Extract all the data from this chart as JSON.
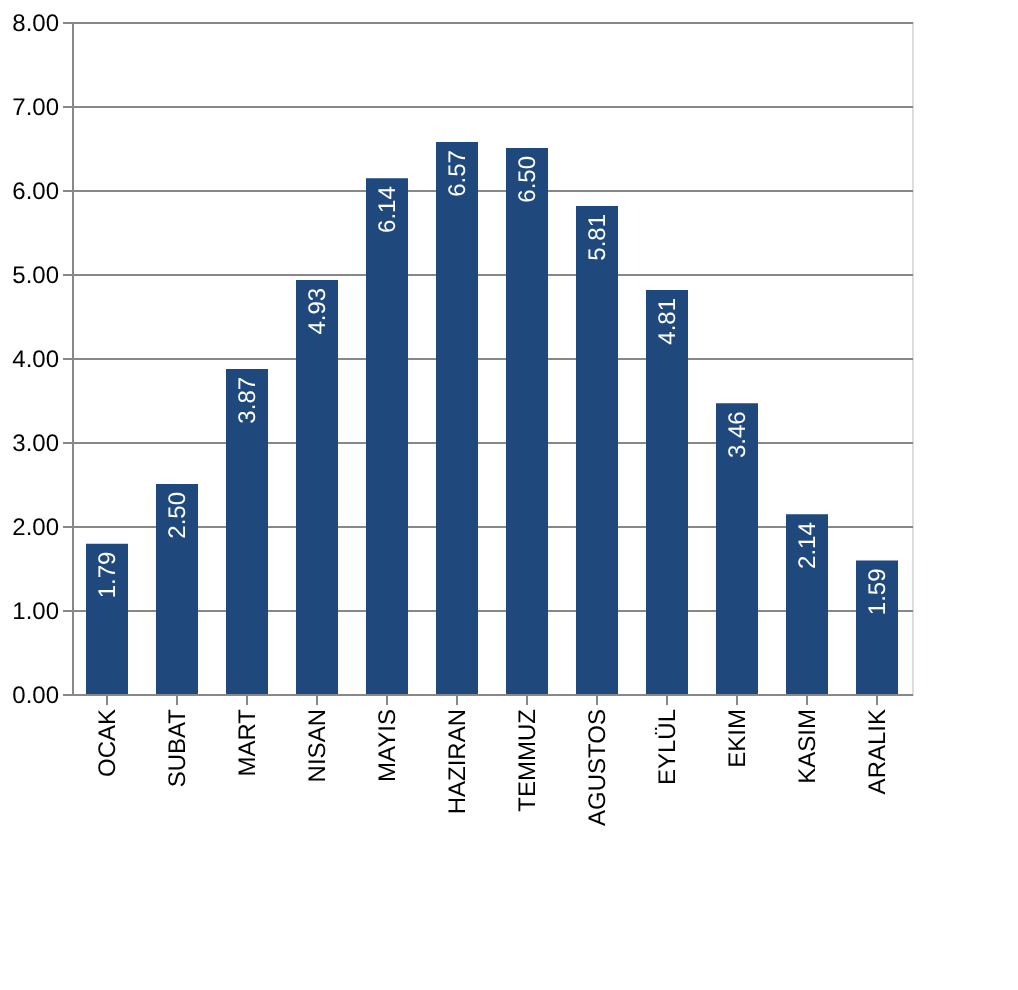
{
  "chart_data": {
    "type": "bar",
    "categories": [
      "OCAK",
      "SUBAT",
      "MART",
      "NISAN",
      "MAYIS",
      "HAZIRAN",
      "TEMMUZ",
      "AGUSTOS",
      "EYLÜL",
      "EKIM",
      "KASIM",
      "ARALIK"
    ],
    "values": [
      1.79,
      2.5,
      3.87,
      4.93,
      6.14,
      6.57,
      6.5,
      5.81,
      4.81,
      3.46,
      2.14,
      1.59
    ],
    "value_labels": [
      "1.79",
      "2.50",
      "3.87",
      "4.93",
      "6.14",
      "6.57",
      "6.50",
      "5.81",
      "4.81",
      "3.46",
      "2.14",
      "1.59"
    ],
    "color": "#1f497d",
    "ylim": [
      0,
      8
    ],
    "yticks": [
      {
        "value": 0,
        "label": "0.00"
      },
      {
        "value": 1,
        "label": "1.00"
      },
      {
        "value": 2,
        "label": "2.00"
      },
      {
        "value": 3,
        "label": "3.00"
      },
      {
        "value": 4,
        "label": "4.00"
      },
      {
        "value": 5,
        "label": "5.00"
      },
      {
        "value": 6,
        "label": "6.00"
      },
      {
        "value": 7,
        "label": "7.00"
      },
      {
        "value": 8,
        "label": "8.00"
      }
    ],
    "grid": "y"
  }
}
